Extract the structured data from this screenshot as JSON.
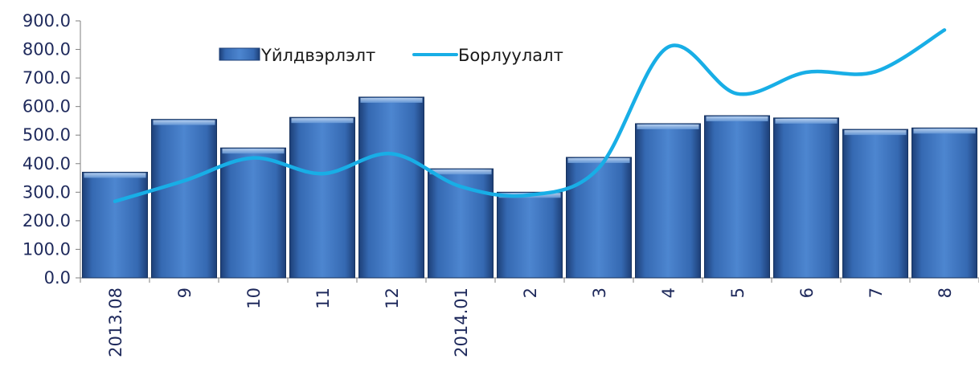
{
  "chart_data": {
    "type": "bar",
    "categories": [
      "2013.08",
      "9",
      "10",
      "11",
      "12",
      "2014.01",
      "2",
      "3",
      "4",
      "5",
      "6",
      "7",
      "8"
    ],
    "series": [
      {
        "name": "Үйлдвэрлэлт",
        "type": "bar",
        "color": "#3f6fb5",
        "values": [
          370,
          555,
          455,
          562,
          633,
          382,
          300,
          422,
          540,
          568,
          560,
          520,
          525
        ]
      },
      {
        "name": "Борлуулалт",
        "type": "line",
        "color": "#18aee6",
        "values": [
          268,
          340,
          420,
          365,
          435,
          320,
          290,
          385,
          808,
          645,
          720,
          722,
          868
        ]
      }
    ],
    "ylim": [
      0,
      900
    ],
    "yticks": [
      "0.0",
      "100.0",
      "200.0",
      "300.0",
      "400.0",
      "500.0",
      "600.0",
      "700.0",
      "800.0",
      "900.0"
    ],
    "legend_position": "top-center",
    "grid": false,
    "line_smooth": true
  }
}
